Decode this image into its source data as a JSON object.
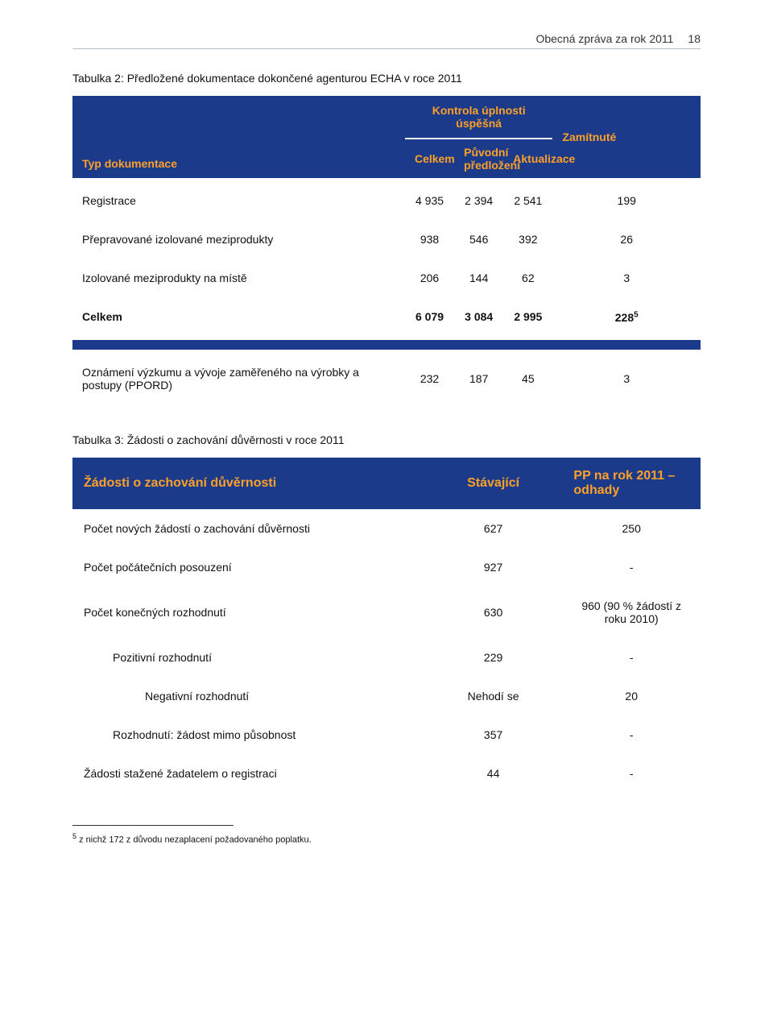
{
  "header": {
    "title": "Obecná zpráva za rok 2011",
    "page": "18"
  },
  "table1": {
    "caption": "Tabulka 2: Předložené dokumentace dokončené agenturou ECHA v roce 2011",
    "group_success": "Kontrola úplnosti úspěšná",
    "group_rejected": "Zamítnuté",
    "doc_type": "Typ dokumentace",
    "col_total": "Celkem",
    "col_original": "Původní předložení",
    "col_update": "Aktualizace",
    "rows": [
      {
        "label": "Registrace",
        "c1": "4 935",
        "c2": "2 394",
        "c3": "2 541",
        "c4": "199"
      },
      {
        "label": "Přepravované izolované meziprodukty",
        "c1": "938",
        "c2": "546",
        "c3": "392",
        "c4": "26"
      },
      {
        "label": "Izolované meziprodukty na místě",
        "c1": "206",
        "c2": "144",
        "c3": "62",
        "c4": "3"
      },
      {
        "label": "Celkem",
        "c1": "6 079",
        "c2": "3 084",
        "c3": "2 995",
        "c4": "228",
        "sup": "5",
        "bold": true
      }
    ],
    "ppord": {
      "label": "Oznámení výzkumu a vývoje zaměřeného na výrobky a postupy (PPORD)",
      "c1": "232",
      "c2": "187",
      "c3": "45",
      "c4": "3"
    }
  },
  "table2": {
    "caption": "Tabulka 3: Žádosti o zachování důvěrnosti v roce 2011",
    "h1": "Žádosti o zachování důvěrnosti",
    "h2": "Stávající",
    "h3": "PP na rok 2011 – odhady",
    "rows": [
      {
        "label": "Počet nových žádostí o zachování důvěrnosti",
        "c2": "627",
        "c3": "250",
        "indent": 0
      },
      {
        "label": "Počet počátečních posouzení",
        "c2": "927",
        "c3": "-",
        "indent": 0
      },
      {
        "label": "Počet konečných rozhodnutí",
        "c2": "630",
        "c3": "960 (90 % žádostí z roku 2010)",
        "indent": 0
      },
      {
        "label": "Pozitivní rozhodnutí",
        "c2": "229",
        "c3": "-",
        "indent": 1
      },
      {
        "label": "Negativní rozhodnutí",
        "c2": "Nehodí se",
        "c3": "20",
        "indent": 2
      },
      {
        "label": "Rozhodnutí: žádost mimo působnost",
        "c2": "357",
        "c3": "-",
        "indent": 1
      },
      {
        "label": "Žádosti stažené žadatelem o registraci",
        "c2": "44",
        "c3": "-",
        "indent": 0
      }
    ]
  },
  "footnote": {
    "num": "5",
    "text": " z nichž 172 z důvodu nezaplacení požadovaného poplatku."
  }
}
